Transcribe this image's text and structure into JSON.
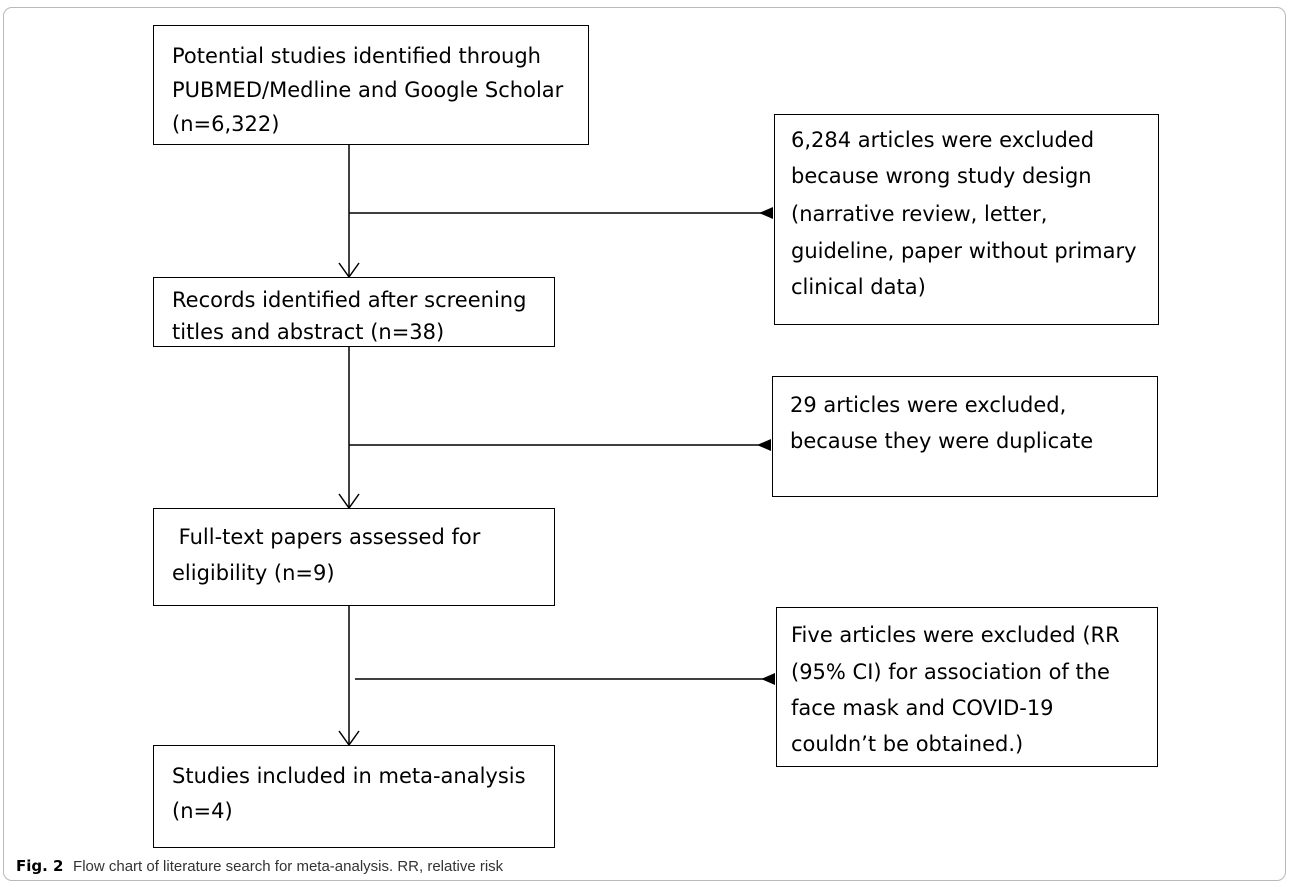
{
  "boxes": {
    "identified": {
      "lines": [
        "Potential studies identified through",
        "PUBMED/Medline and Google Scholar",
        "(n=6,322)"
      ]
    },
    "excluded_design": {
      "lines": [
        "6,284 articles were excluded",
        "because wrong study design",
        "(narrative review, letter,",
        "guideline, paper without primary",
        "clinical data)"
      ]
    },
    "screened": {
      "lines": [
        "Records identified after screening",
        "titles and abstract (n=38)"
      ]
    },
    "excluded_duplicate": {
      "lines": [
        "29 articles were excluded,",
        "because they were duplicate"
      ]
    },
    "fulltext": {
      "lines": [
        " Full-text papers assessed for",
        "eligibility (n=9)"
      ]
    },
    "excluded_rr": {
      "lines": [
        "Five articles were excluded (RR",
        "(95% CI) for association of the",
        "face mask and COVID-19",
        "couldn’t be obtained.)"
      ]
    },
    "included": {
      "lines": [
        "Studies included in meta-analysis",
        "(n=4)"
      ]
    }
  },
  "caption": {
    "label": "Fig. 2",
    "text": "Flow chart of literature search for meta-analysis. RR, relative risk"
  }
}
